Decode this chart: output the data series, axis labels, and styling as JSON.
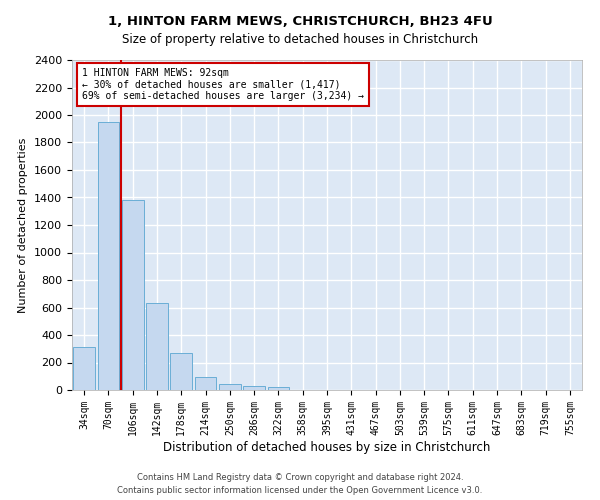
{
  "title": "1, HINTON FARM MEWS, CHRISTCHURCH, BH23 4FU",
  "subtitle": "Size of property relative to detached houses in Christchurch",
  "xlabel": "Distribution of detached houses by size in Christchurch",
  "ylabel": "Number of detached properties",
  "bar_color": "#c5d8ef",
  "bar_edge_color": "#6aaed6",
  "bg_color": "#dde8f5",
  "grid_color": "#c8d8e8",
  "categories": [
    "34sqm",
    "70sqm",
    "106sqm",
    "142sqm",
    "178sqm",
    "214sqm",
    "250sqm",
    "286sqm",
    "322sqm",
    "358sqm",
    "395sqm",
    "431sqm",
    "467sqm",
    "503sqm",
    "539sqm",
    "575sqm",
    "611sqm",
    "647sqm",
    "683sqm",
    "719sqm",
    "755sqm"
  ],
  "values": [
    315,
    1950,
    1380,
    630,
    270,
    95,
    45,
    30,
    20,
    0,
    0,
    0,
    0,
    0,
    0,
    0,
    0,
    0,
    0,
    0,
    0
  ],
  "ylim": [
    0,
    2400
  ],
  "yticks": [
    0,
    200,
    400,
    600,
    800,
    1000,
    1200,
    1400,
    1600,
    1800,
    2000,
    2200,
    2400
  ],
  "red_line_x": 1.5,
  "annotation_line1": "1 HINTON FARM MEWS: 92sqm",
  "annotation_line2": "← 30% of detached houses are smaller (1,417)",
  "annotation_line3": "69% of semi-detached houses are larger (3,234) →",
  "red_color": "#cc0000",
  "footer_line1": "Contains HM Land Registry data © Crown copyright and database right 2024.",
  "footer_line2": "Contains public sector information licensed under the Open Government Licence v3.0."
}
